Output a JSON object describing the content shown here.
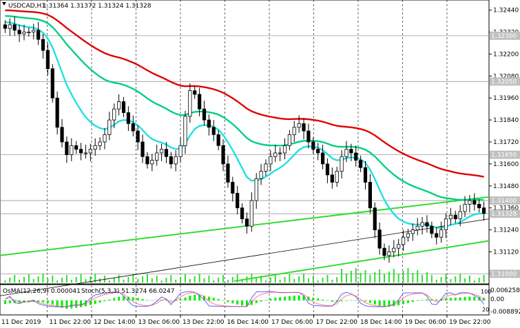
{
  "header": {
    "symbol": "USDCAD,H1",
    "ohlc": "1.31364 1.31372 1.31324 1.31328"
  },
  "indicator": {
    "osma_label": "OsMA(12,26,9) 0.000041",
    "stoch_label": "Stoch(5,3,3) 51.3274 66.0247"
  },
  "price_axis": {
    "ticks": [
      "1.32440",
      "1.32320",
      "1.32200",
      "1.32080",
      "1.31960",
      "1.31840",
      "1.31720",
      "1.31600",
      "1.31480",
      "1.31360",
      "1.31240",
      "1.31120",
      "1.31000"
    ],
    "levels": [
      {
        "label": "1.32300",
        "color": "#c0c0c0",
        "value": 1.323
      },
      {
        "label": "1.32050",
        "color": "#c0c0c0",
        "value": 1.3205
      },
      {
        "label": "1.31650",
        "color": "#c0c0c0",
        "value": 1.3165
      },
      {
        "label": "1.31400",
        "color": "#c0c0c0",
        "value": 1.314
      },
      {
        "label": "1.31328",
        "color": "#c0c0c0",
        "value": 1.31328
      },
      {
        "label": "1.31000",
        "color": "#c0c0c0",
        "value": 1.31
      }
    ]
  },
  "osc_axis": {
    "top": "0.006258",
    "mid": "0.00",
    "bottom": "-0.008892",
    "side1": "100",
    "side2": "20"
  },
  "time_axis": [
    "11 Dec 2019",
    "11 Dec 22:00",
    "12 Dec 14:00",
    "13 Dec 06:00",
    "13 Dec 22:00",
    "16 Dec 14:00",
    "17 Dec 06:00",
    "17 Dec 22:00",
    "18 Dec 14:00",
    "19 Dec 06:00",
    "19 Dec 22:00"
  ],
  "colors": {
    "candles": "#000000",
    "ema_red": "#e00000",
    "ema_green": "#00d080",
    "ema_cyan": "#20e0e0",
    "channel": "#30dd30",
    "osma": "#00ee00",
    "stoch_main": "#6060ff",
    "stoch_signal": "#ff4040"
  },
  "chart_data": {
    "type": "candlestick",
    "ylim": [
      1.3096,
      1.3248
    ],
    "close_series": [
      1.3234,
      1.3236,
      1.3233,
      1.3231,
      1.3232,
      1.3232,
      1.3233,
      1.3228,
      1.3222,
      1.3212,
      1.3196,
      1.318,
      1.3172,
      1.3165,
      1.317,
      1.3168,
      1.3166,
      1.3166,
      1.3168,
      1.317,
      1.3172,
      1.3176,
      1.3184,
      1.319,
      1.3194,
      1.3188,
      1.3182,
      1.3178,
      1.3172,
      1.3164,
      1.316,
      1.3162,
      1.3166,
      1.3168,
      1.3164,
      1.316,
      1.3164,
      1.317,
      1.3186,
      1.32,
      1.3198,
      1.319,
      1.3184,
      1.318,
      1.3176,
      1.317,
      1.316,
      1.315,
      1.3144,
      1.3136,
      1.313,
      1.3126,
      1.314,
      1.3152,
      1.3156,
      1.316,
      1.3164,
      1.3166,
      1.3166,
      1.317,
      1.3176,
      1.318,
      1.3182,
      1.3178,
      1.3172,
      1.3168,
      1.3166,
      1.316,
      1.3154,
      1.315,
      1.3156,
      1.3164,
      1.3168,
      1.3166,
      1.3162,
      1.3158,
      1.315,
      1.3136,
      1.3124,
      1.3114,
      1.311,
      1.3112,
      1.3114,
      1.3116,
      1.312,
      1.3122,
      1.3124,
      1.3126,
      1.3128,
      1.3126,
      1.3122,
      1.312,
      1.3124,
      1.313,
      1.3132,
      1.313,
      1.3134,
      1.3138,
      1.314,
      1.3138,
      1.3136,
      1.3133
    ]
  }
}
